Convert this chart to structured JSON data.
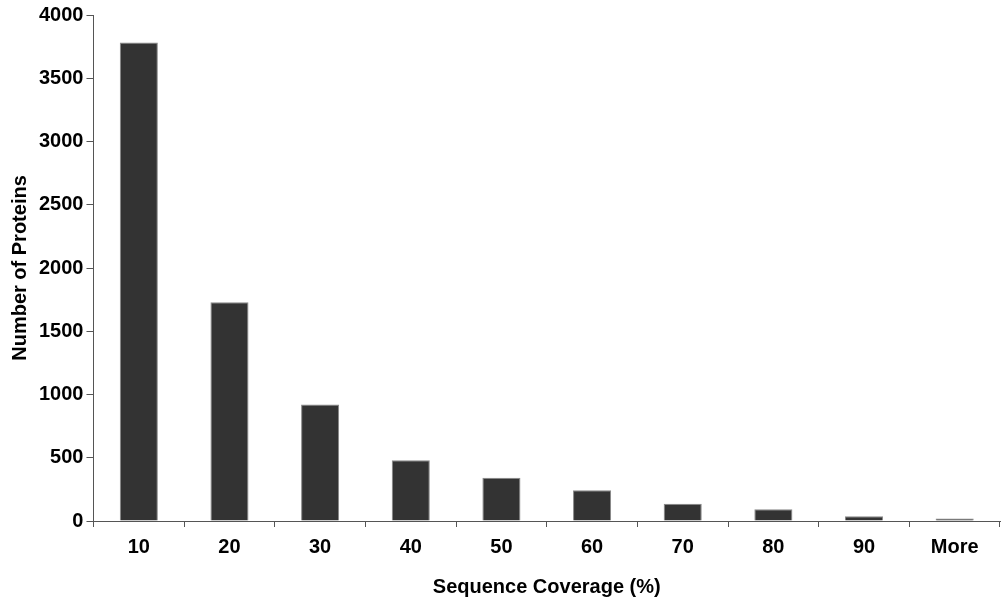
{
  "chart_data": {
    "type": "bar",
    "xlabel": "Sequence Coverage (%)",
    "ylabel": "Number of Proteins",
    "categories": [
      "10",
      "20",
      "30",
      "40",
      "50",
      "60",
      "70",
      "80",
      "90",
      "More"
    ],
    "values": [
      3783,
      1729,
      920,
      481,
      341,
      243,
      136,
      93,
      37,
      19
    ],
    "color": "#333333",
    "ylim": [
      0,
      4000
    ],
    "yticks": [
      0,
      500,
      1000,
      1500,
      2000,
      2500,
      3000,
      3500,
      4000
    ],
    "grid": false,
    "legend": false
  }
}
